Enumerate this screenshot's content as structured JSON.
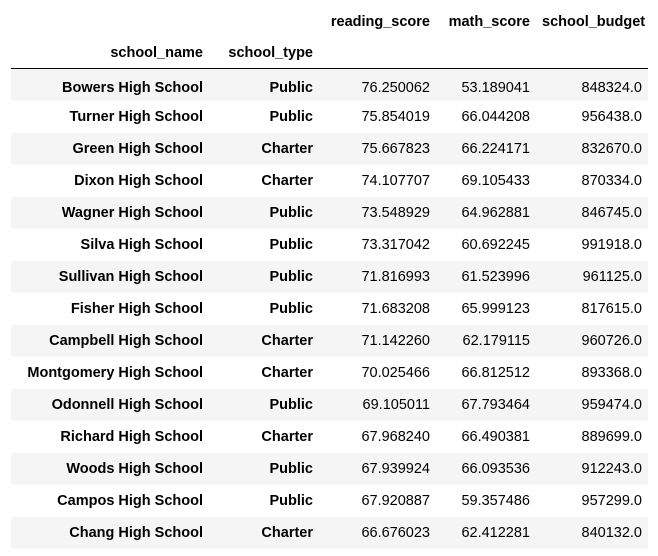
{
  "table": {
    "columns": [
      "reading_score",
      "math_score",
      "school_budget"
    ],
    "index_names": [
      "school_name",
      "school_type"
    ],
    "rows": [
      {
        "school_name": "Bowers High School",
        "school_type": "Public",
        "reading_score": "76.250062",
        "math_score": "53.189041",
        "school_budget": "848324.0"
      },
      {
        "school_name": "Turner High School",
        "school_type": "Public",
        "reading_score": "75.854019",
        "math_score": "66.044208",
        "school_budget": "956438.0"
      },
      {
        "school_name": "Green High School",
        "school_type": "Charter",
        "reading_score": "75.667823",
        "math_score": "66.224171",
        "school_budget": "832670.0"
      },
      {
        "school_name": "Dixon High School",
        "school_type": "Charter",
        "reading_score": "74.107707",
        "math_score": "69.105433",
        "school_budget": "870334.0"
      },
      {
        "school_name": "Wagner High School",
        "school_type": "Public",
        "reading_score": "73.548929",
        "math_score": "64.962881",
        "school_budget": "846745.0"
      },
      {
        "school_name": "Silva High School",
        "school_type": "Public",
        "reading_score": "73.317042",
        "math_score": "60.692245",
        "school_budget": "991918.0"
      },
      {
        "school_name": "Sullivan High School",
        "school_type": "Public",
        "reading_score": "71.816993",
        "math_score": "61.523996",
        "school_budget": "961125.0"
      },
      {
        "school_name": "Fisher High School",
        "school_type": "Public",
        "reading_score": "71.683208",
        "math_score": "65.999123",
        "school_budget": "817615.0"
      },
      {
        "school_name": "Campbell High School",
        "school_type": "Charter",
        "reading_score": "71.142260",
        "math_score": "62.179115",
        "school_budget": "960726.0"
      },
      {
        "school_name": "Montgomery High School",
        "school_type": "Charter",
        "reading_score": "70.025466",
        "math_score": "66.812512",
        "school_budget": "893368.0"
      },
      {
        "school_name": "Odonnell High School",
        "school_type": "Public",
        "reading_score": "69.105011",
        "math_score": "67.793464",
        "school_budget": "959474.0"
      },
      {
        "school_name": "Richard High School",
        "school_type": "Charter",
        "reading_score": "67.968240",
        "math_score": "66.490381",
        "school_budget": "889699.0"
      },
      {
        "school_name": "Woods High School",
        "school_type": "Public",
        "reading_score": "67.939924",
        "math_score": "66.093536",
        "school_budget": "912243.0"
      },
      {
        "school_name": "Campos High School",
        "school_type": "Public",
        "reading_score": "67.920887",
        "math_score": "59.357486",
        "school_budget": "957299.0"
      },
      {
        "school_name": "Chang High School",
        "school_type": "Charter",
        "reading_score": "66.676023",
        "math_score": "62.412281",
        "school_budget": "840132.0"
      }
    ]
  }
}
